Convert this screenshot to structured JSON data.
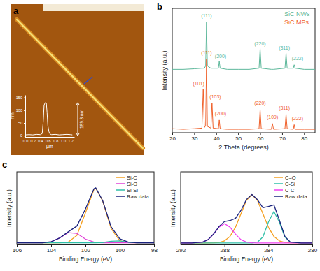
{
  "chart_data": [
    {
      "type": "line",
      "title": "a",
      "x_label": "µm",
      "y_label": "nm",
      "x": [
        0,
        0.1,
        0.2,
        0.3,
        0.4,
        0.45,
        0.48,
        0.5,
        0.53,
        0.56,
        0.58,
        0.6,
        0.63,
        0.66,
        0.7,
        0.8,
        0.9,
        1.0,
        1.1,
        1.2,
        1.25
      ],
      "series": [
        {
          "color": "#ffffff",
          "values": [
            3,
            4,
            3,
            5,
            4,
            8,
            60,
            120,
            130,
            128,
            90,
            40,
            15,
            6,
            4,
            5,
            3,
            4,
            5,
            4,
            3
          ]
        }
      ],
      "xlim": [
        0,
        1.3
      ],
      "xticks": [
        {
          "value": 0,
          "label": "0.0"
        },
        0.2,
        0.4,
        0.6,
        0.8,
        {
          "value": 1,
          "label": "1.0"
        },
        1.2
      ],
      "ylim": [
        -5,
        160
      ],
      "yticks": [
        0,
        50,
        100,
        150
      ],
      "annotations": [
        {
          "text": "189.3 nm"
        }
      ]
    },
    {
      "type": "line",
      "title": "b",
      "x_label": "2 Theta (degrees)",
      "y_label": "Intensity (a.u.)",
      "x": [
        20,
        25,
        30,
        33.5,
        34.1,
        34.6,
        35.2,
        35.6,
        36.0,
        37.6,
        38.1,
        38.6,
        41.0,
        41.4,
        41.8,
        45,
        50,
        55,
        59.5,
        60,
        60.5,
        65.1,
        65.6,
        66.1,
        71.3,
        71.8,
        72.3,
        75.1,
        75.5,
        75.9,
        80,
        85
      ],
      "series": [
        {
          "name": "SiC NWs",
          "color": "#5db89b",
          "values": [
            5.5,
            5.5,
            5.55,
            5.6,
            5.6,
            5.6,
            5.8,
            9.6,
            5.8,
            5.6,
            5.6,
            5.6,
            5.6,
            6.2,
            5.6,
            5.5,
            5.5,
            5.5,
            5.6,
            7.3,
            5.6,
            5.5,
            5.5,
            5.5,
            5.6,
            6.9,
            5.6,
            5.6,
            5.9,
            5.6,
            5.5,
            5.5
          ]
        },
        {
          "name": "SiC MPs",
          "color": "#f0602a",
          "values": [
            0.35,
            0.3,
            0.35,
            0.4,
            3.8,
            0.45,
            0.6,
            6.4,
            0.55,
            0.4,
            2.6,
            0.4,
            0.35,
            1.1,
            0.35,
            0.3,
            0.3,
            0.3,
            0.35,
            2.0,
            0.35,
            0.3,
            0.8,
            0.3,
            0.35,
            1.6,
            0.35,
            0.3,
            0.7,
            0.3,
            0.3,
            0.3
          ]
        }
      ],
      "xlim": [
        20,
        85
      ],
      "xticks": [
        20,
        30,
        40,
        50,
        60,
        70,
        80
      ],
      "ylim": [
        0,
        10.8
      ],
      "tick_labels": "x",
      "legend": "top-right",
      "annotations": [
        {
          "text": "(111)",
          "x": 35.6,
          "y": 10.0,
          "color": "#5db89b"
        },
        {
          "text": "(200)",
          "x": 42,
          "y": 6.5,
          "color": "#5db89b"
        },
        {
          "text": "(220)",
          "x": 60,
          "y": 7.6,
          "color": "#5db89b"
        },
        {
          "text": "(311)",
          "x": 71,
          "y": 7.2,
          "color": "#5db89b"
        },
        {
          "text": "(222)",
          "x": 77,
          "y": 6.3,
          "color": "#5db89b"
        },
        {
          "text": "(101)",
          "x": 32,
          "y": 4.1,
          "color": "#f0602a"
        },
        {
          "text": "(111)",
          "x": 35.6,
          "y": 6.8,
          "color": "#f0602a"
        },
        {
          "text": "(103)",
          "x": 39.6,
          "y": 3.0,
          "color": "#f0602a"
        },
        {
          "text": "(200)",
          "x": 42,
          "y": 1.5,
          "color": "#f0602a"
        },
        {
          "text": "(220)",
          "x": 60,
          "y": 2.4,
          "color": "#f0602a"
        },
        {
          "text": "(109)",
          "x": 65.6,
          "y": 1.2,
          "color": "#f0602a"
        },
        {
          "text": "(311)",
          "x": 71,
          "y": 2.0,
          "color": "#f0602a"
        },
        {
          "text": "(222)",
          "x": 77,
          "y": 1.1,
          "color": "#f0602a"
        }
      ]
    },
    {
      "type": "line",
      "title": "c",
      "x_label": "Binding Energy (eV)",
      "y_label": "Intensity (a.u.)",
      "x": [
        106,
        105,
        104.5,
        104,
        103.5,
        103,
        102.5,
        102,
        101.5,
        101.4,
        101,
        100.5,
        100,
        99.5,
        99,
        98
      ],
      "series": [
        {
          "name": "Si-C",
          "color": "#f5a020",
          "values": [
            0,
            0,
            0,
            0,
            0.0007,
            0.015,
            0.135,
            0.55,
            0.98,
            1,
            0.77,
            0.26,
            0.039,
            0.0026,
            0,
            0
          ]
        },
        {
          "name": "Si-O",
          "color": "#e040d8",
          "values": [
            0,
            0,
            0.002,
            0.019,
            0.089,
            0.187,
            0.172,
            0.069,
            0.012,
            0.008,
            0.001,
            0,
            0,
            0,
            0,
            0
          ]
        },
        {
          "name": "Si-Si",
          "color": "#2fbfa8",
          "values": [
            0,
            0,
            0,
            0,
            0,
            0,
            0,
            0,
            0,
            0,
            0.005,
            0.03,
            0.035,
            0.009,
            0,
            0
          ]
        },
        {
          "name": "Raw data",
          "color": "#1a237e",
          "values": [
            0,
            0,
            0.002,
            0.019,
            0.09,
            0.202,
            0.307,
            0.619,
            0.992,
            1.008,
            0.776,
            0.29,
            0.074,
            0.012,
            0,
            0
          ]
        }
      ],
      "xlim": [
        106,
        98
      ],
      "xticks": [
        106,
        104,
        102,
        100,
        98
      ],
      "ylim": [
        -0.03,
        1.3
      ],
      "tick_labels": "x",
      "legend": "top-right"
    },
    {
      "type": "line",
      "x_label": "Binding Energy (eV)",
      "y_label": "Intensity (a.u.)",
      "x": [
        292,
        291,
        290,
        289.5,
        289,
        288.5,
        288,
        287.5,
        287,
        286.5,
        286,
        285.5,
        285,
        284.5,
        284,
        283.5,
        283,
        282.5,
        282,
        281,
        280
      ],
      "series": [
        {
          "name": "C=O",
          "color": "#f5a020",
          "values": [
            0,
            0,
            0,
            0,
            0.002,
            0.011,
            0.042,
            0.129,
            0.309,
            0.576,
            0.838,
            0.95,
            0.838,
            0.576,
            0.309,
            0.129,
            0.042,
            0.011,
            0.002,
            0,
            0
          ]
        },
        {
          "name": "C-Si",
          "color": "#2fbfa8",
          "values": [
            0,
            0,
            0,
            0,
            0,
            0,
            0,
            0,
            0,
            0,
            0,
            0.001,
            0.015,
            0.119,
            0.41,
            0.62,
            0.41,
            0.119,
            0.015,
            0,
            0
          ]
        },
        {
          "name": "C-C",
          "color": "#f040f0",
          "values": [
            0,
            0,
            0.017,
            0.065,
            0.174,
            0.312,
            0.38,
            0.312,
            0.174,
            0.065,
            0.017,
            0.003,
            0,
            0,
            0,
            0,
            0,
            0,
            0,
            0,
            0
          ]
        },
        {
          "name": "Raw data",
          "color": "#1a237e",
          "values": [
            0,
            0,
            0.017,
            0.065,
            0.176,
            0.323,
            0.422,
            0.441,
            0.483,
            0.641,
            0.855,
            0.954,
            0.853,
            0.695,
            0.719,
            0.749,
            0.452,
            0.13,
            0.017,
            0,
            0
          ]
        }
      ],
      "xlim": [
        292,
        280
      ],
      "xticks": [
        292,
        288,
        284,
        280
      ],
      "ylim": [
        -0.03,
        1.4
      ],
      "tick_labels": "x",
      "legend": "top-right"
    }
  ]
}
